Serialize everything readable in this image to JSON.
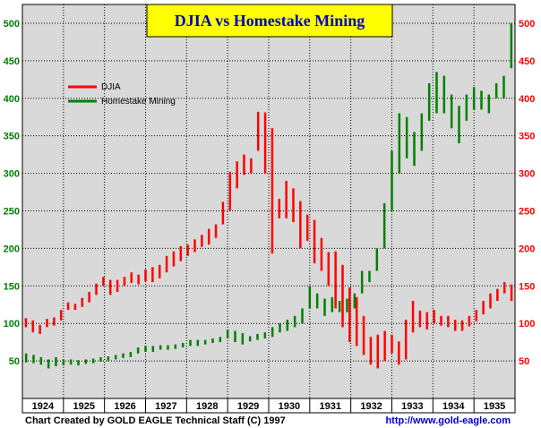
{
  "footer": {
    "credit": "Chart Created by GOLD EAGLE Technical Staff (C) 1997",
    "url": "http://www.gold-eagle.com"
  },
  "colors": {
    "background": "#d9d9d9",
    "title_box": "#ffff00",
    "title_text": "#0000cc",
    "left_axis": "#008000",
    "right_axis": "#ff0000",
    "djia": "#ff0000",
    "homestake": "#008000",
    "url": "#0000cc"
  },
  "chart_data": {
    "type": "line",
    "title": "DJIA  vs  Homestake Mining",
    "categories": [
      "1924",
      "1925",
      "1926",
      "1927",
      "1928",
      "1929",
      "1930",
      "1931",
      "1932",
      "1933",
      "1934",
      "1935"
    ],
    "ylim": [
      0,
      525
    ],
    "yticks": [
      50,
      100,
      150,
      200,
      250,
      300,
      350,
      400,
      450,
      500
    ],
    "grid": true,
    "legend_position": "top-left",
    "series": [
      {
        "name": "DJIA",
        "color": "#ff0000",
        "bar_style": "high-low",
        "values": [
          [
            95,
            107
          ],
          [
            88,
            104
          ],
          [
            86,
            98
          ],
          [
            95,
            106
          ],
          [
            97,
            108
          ],
          [
            104,
            118
          ],
          [
            118,
            128
          ],
          [
            118,
            126
          ],
          [
            122,
            134
          ],
          [
            128,
            142
          ],
          [
            138,
            153
          ],
          [
            150,
            162
          ],
          [
            138,
            158
          ],
          [
            142,
            158
          ],
          [
            150,
            162
          ],
          [
            154,
            168
          ],
          [
            152,
            165
          ],
          [
            156,
            172
          ],
          [
            155,
            175
          ],
          [
            160,
            178
          ],
          [
            168,
            190
          ],
          [
            176,
            196
          ],
          [
            183,
            203
          ],
          [
            190,
            205
          ],
          [
            195,
            212
          ],
          [
            202,
            218
          ],
          [
            205,
            226
          ],
          [
            214,
            232
          ],
          [
            232,
            262
          ],
          [
            250,
            302
          ],
          [
            280,
            316
          ],
          [
            298,
            325
          ],
          [
            300,
            320
          ],
          [
            330,
            382
          ],
          [
            300,
            381
          ],
          [
            193,
            360
          ],
          [
            240,
            266
          ],
          [
            240,
            290
          ],
          [
            235,
            280
          ],
          [
            200,
            263
          ],
          [
            210,
            245
          ],
          [
            180,
            238
          ],
          [
            170,
            214
          ],
          [
            150,
            195
          ],
          [
            120,
            196
          ],
          [
            95,
            178
          ],
          [
            75,
            148
          ],
          [
            70,
            135
          ],
          [
            58,
            110
          ],
          [
            45,
            82
          ],
          [
            40,
            85
          ],
          [
            50,
            90
          ],
          [
            60,
            85
          ],
          [
            45,
            76
          ],
          [
            52,
            105
          ],
          [
            88,
            130
          ],
          [
            95,
            117
          ],
          [
            92,
            115
          ],
          [
            100,
            118
          ],
          [
            97,
            110
          ],
          [
            95,
            110
          ],
          [
            90,
            105
          ],
          [
            90,
            104
          ],
          [
            96,
            110
          ],
          [
            103,
            118
          ],
          [
            112,
            130
          ],
          [
            120,
            140
          ],
          [
            130,
            146
          ],
          [
            140,
            155
          ],
          [
            130,
            152
          ]
        ]
      },
      {
        "name": "Homestake Mining",
        "color": "#008000",
        "bar_style": "high-low",
        "values": [
          [
            48,
            60
          ],
          [
            47,
            58
          ],
          [
            45,
            55
          ],
          [
            40,
            52
          ],
          [
            43,
            55
          ],
          [
            44,
            52
          ],
          [
            45,
            52
          ],
          [
            44,
            51
          ],
          [
            46,
            52
          ],
          [
            47,
            53
          ],
          [
            49,
            55
          ],
          [
            50,
            56
          ],
          [
            52,
            58
          ],
          [
            54,
            60
          ],
          [
            55,
            62
          ],
          [
            60,
            68
          ],
          [
            62,
            70
          ],
          [
            62,
            70
          ],
          [
            65,
            71
          ],
          [
            65,
            71
          ],
          [
            66,
            72
          ],
          [
            68,
            74
          ],
          [
            70,
            78
          ],
          [
            70,
            78
          ],
          [
            72,
            78
          ],
          [
            74,
            80
          ],
          [
            75,
            82
          ],
          [
            80,
            92
          ],
          [
            75,
            90
          ],
          [
            72,
            87
          ],
          [
            76,
            83
          ],
          [
            78,
            86
          ],
          [
            80,
            88
          ],
          [
            82,
            95
          ],
          [
            88,
            100
          ],
          [
            90,
            105
          ],
          [
            95,
            110
          ],
          [
            100,
            120
          ],
          [
            120,
            150
          ],
          [
            120,
            140
          ],
          [
            110,
            133
          ],
          [
            115,
            135
          ],
          [
            115,
            130
          ],
          [
            115,
            133
          ],
          [
            120,
            140
          ],
          [
            140,
            170
          ],
          [
            155,
            170
          ],
          [
            170,
            200
          ],
          [
            200,
            260
          ],
          [
            250,
            330
          ],
          [
            300,
            380
          ],
          [
            320,
            375
          ],
          [
            310,
            355
          ],
          [
            330,
            380
          ],
          [
            370,
            420
          ],
          [
            380,
            435
          ],
          [
            380,
            430
          ],
          [
            360,
            405
          ],
          [
            340,
            390
          ],
          [
            370,
            405
          ],
          [
            385,
            415
          ],
          [
            385,
            410
          ],
          [
            380,
            405
          ],
          [
            400,
            420
          ],
          [
            400,
            430
          ],
          [
            440,
            500
          ]
        ]
      }
    ]
  }
}
